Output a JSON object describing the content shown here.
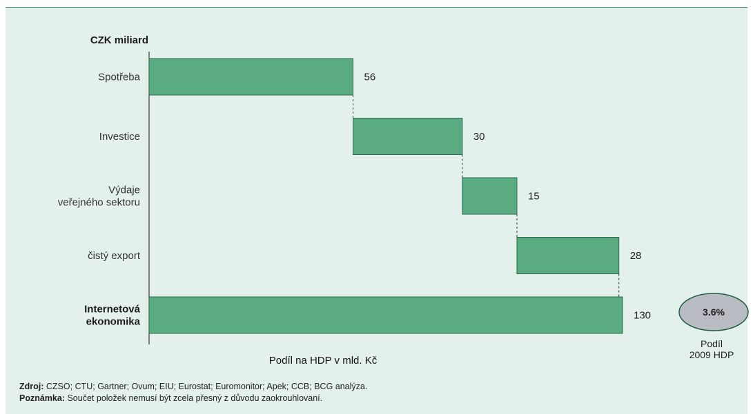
{
  "chart_data": {
    "type": "bar",
    "subtype": "waterfall",
    "orientation": "horizontal",
    "unit_label": "CZK miliard",
    "categories": [
      [
        "Spotřeba"
      ],
      [
        "Investice"
      ],
      [
        "Výdaje",
        "veřejného sektoru"
      ],
      [
        "čistý export"
      ],
      [
        "Internetová",
        "ekonomika"
      ]
    ],
    "values": [
      56,
      30,
      15,
      28,
      130
    ],
    "is_total": [
      false,
      false,
      false,
      false,
      true
    ],
    "bold_category": [
      false,
      false,
      false,
      false,
      true
    ],
    "xlabel": "Podíl na HDP v mld. Kč",
    "xlim": [
      0,
      130
    ],
    "grid": false,
    "bar_color": "#5aaa82",
    "bar_edge_color": "#2b6b4e",
    "connector_style": "dashed"
  },
  "share_badge": {
    "value": "3.6%",
    "caption": [
      "Podíl",
      "2009 HDP"
    ],
    "fill_color": "#b9bcc2"
  },
  "footer": {
    "source_label": "Zdroj:",
    "source_text": " CZSO; CTU; Gartner; Ovum; EIU; Eurostat; Euromonitor; Apek; CCB; BCG analýza.",
    "note_label": "Poznámka:",
    "note_text": " Součet položek nemusí být zcela přesný z důvodu zaokrouhlovaní."
  }
}
